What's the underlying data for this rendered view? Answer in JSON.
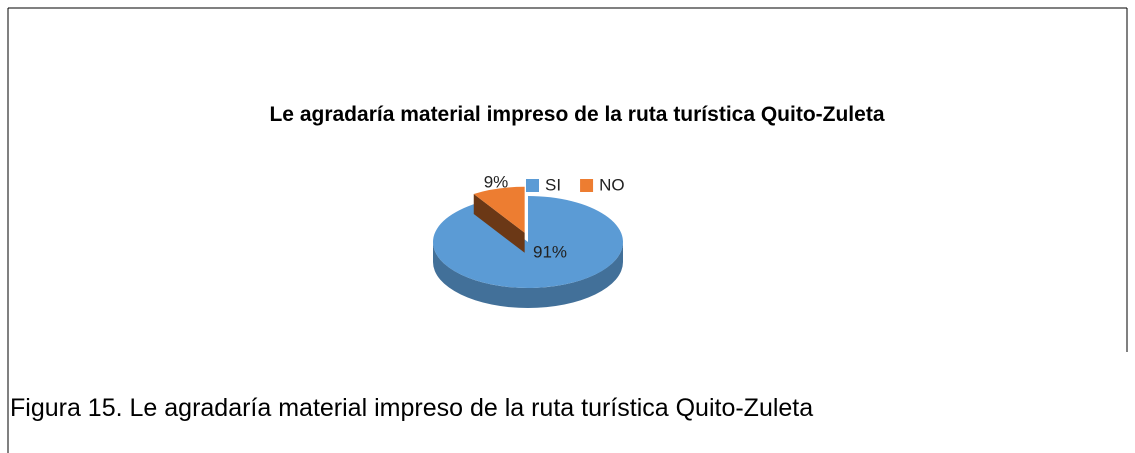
{
  "chart_data": {
    "type": "pie3d",
    "title": "Le agradaría material impreso de la ruta turística Quito-Zuleta",
    "categories": [
      "SI",
      "NO"
    ],
    "values": [
      91,
      9
    ],
    "value_labels": [
      "91%",
      "9%"
    ],
    "colors": [
      "#5b9bd5",
      "#ed7d31"
    ],
    "legend": "top"
  },
  "caption": "Figura 15. Le agradaría material impreso de la ruta turística Quito-Zuleta"
}
